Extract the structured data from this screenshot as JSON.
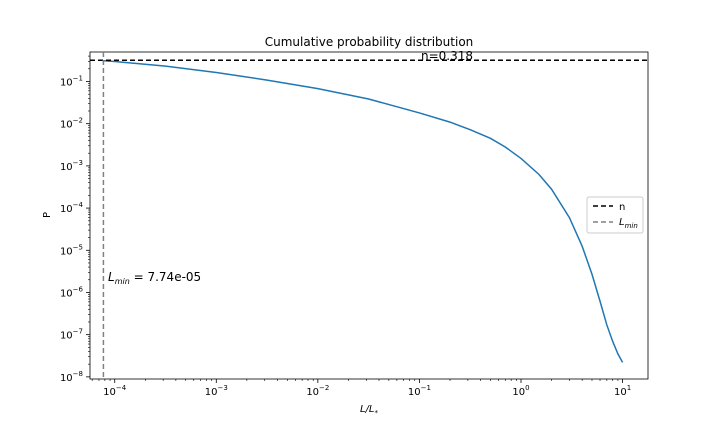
{
  "chart_data": {
    "type": "line",
    "title": "Cumulative probability distribution",
    "xlabel": "L/L*",
    "ylabel": "P",
    "xscale": "log",
    "yscale": "log",
    "xlim": [
      5.71e-05,
      17.8
    ],
    "ylim": [
      8.9e-09,
      0.5
    ],
    "x_ticks": [
      {
        "mant": "10",
        "exp": "−4",
        "v": 0.0001
      },
      {
        "mant": "10",
        "exp": "−3",
        "v": 0.001
      },
      {
        "mant": "10",
        "exp": "−2",
        "v": 0.01
      },
      {
        "mant": "10",
        "exp": "−1",
        "v": 0.1
      },
      {
        "mant": "10",
        "exp": "0",
        "v": 1
      },
      {
        "mant": "10",
        "exp": "1",
        "v": 10
      }
    ],
    "y_ticks": [
      {
        "mant": "10",
        "exp": "−1",
        "v": 0.1
      },
      {
        "mant": "10",
        "exp": "−2",
        "v": 0.01
      },
      {
        "mant": "10",
        "exp": "−3",
        "v": 0.001
      },
      {
        "mant": "10",
        "exp": "−4",
        "v": 0.0001
      },
      {
        "mant": "10",
        "exp": "−5",
        "v": 1e-05
      },
      {
        "mant": "10",
        "exp": "−6",
        "v": 1e-06
      },
      {
        "mant": "10",
        "exp": "−7",
        "v": 1e-07
      },
      {
        "mant": "10",
        "exp": "−8",
        "v": 1e-08
      }
    ],
    "series": [
      {
        "color": "#1f77b4",
        "x": [
          7.74e-05,
          0.0001,
          0.000316,
          0.001,
          0.00316,
          0.01,
          0.0316,
          0.1,
          0.2,
          0.316,
          0.5,
          0.7,
          1.0,
          1.5,
          2.0,
          3.0,
          4.0,
          5.0,
          6.0,
          7.0,
          8.0,
          9.0,
          10.0
        ],
        "y": [
          0.31,
          0.297,
          0.232,
          0.163,
          0.108,
          0.0676,
          0.0385,
          0.018,
          0.0109,
          0.0072,
          0.0045,
          0.0028,
          0.0015,
          0.00063,
          0.00028,
          5.9e-05,
          1.25e-05,
          2.7e-06,
          6.2e-07,
          1.7e-07,
          6.9e-08,
          3.5e-08,
          2.2e-08
        ]
      }
    ],
    "hline": {
      "y": 0.318,
      "color": "#000000",
      "style": "dashed",
      "label": "n",
      "annotation": "n=0.318"
    },
    "vline": {
      "x": 7.74e-05,
      "color": "#808080",
      "style": "dashed",
      "label": "L_min",
      "annotation_value": "7.74e-05"
    },
    "legend": {
      "placement": "center-right",
      "items": [
        "n",
        "L_min"
      ]
    },
    "grid": false
  }
}
